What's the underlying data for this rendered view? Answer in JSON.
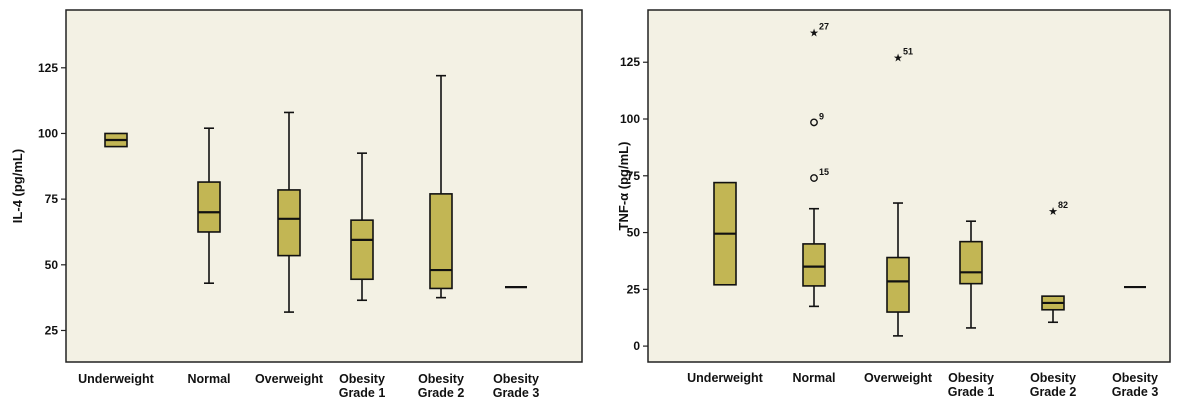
{
  "chart_data": [
    {
      "type": "boxplot",
      "ylabel": "IL-4 (pg/mL)",
      "ylim": [
        13,
        147
      ],
      "yticks": [
        "25",
        "50",
        "75",
        "100",
        "125"
      ],
      "categories": [
        "Underweight",
        "Normal",
        "Overweight",
        "Obesity Grade 1",
        "Obesity Grade 2",
        "Obesity Grade 3"
      ],
      "boxes": [
        {
          "min": 95,
          "q1": 95,
          "median": 97.5,
          "q3": 100,
          "max": 100
        },
        {
          "min": 43,
          "q1": 62.5,
          "median": 70,
          "q3": 81.5,
          "max": 102
        },
        {
          "min": 32,
          "q1": 53.5,
          "median": 67.5,
          "q3": 78.5,
          "max": 108
        },
        {
          "min": 36.5,
          "q1": 44.5,
          "median": 59.5,
          "q3": 67,
          "max": 92.5
        },
        {
          "min": 37.5,
          "q1": 41,
          "median": 48,
          "q3": 77,
          "max": 122
        },
        {
          "min": 41.5,
          "q1": 41.5,
          "median": 41.5,
          "q3": 41.5,
          "max": 41.5
        }
      ],
      "outliers": [],
      "fill_color": "#c2b654"
    },
    {
      "type": "boxplot",
      "ylabel": "TNF-α (pg/mL)",
      "ylim": [
        -7,
        148
      ],
      "yticks": [
        "0",
        "25",
        "50",
        "75",
        "100",
        "125"
      ],
      "categories": [
        "Underweight",
        "Normal",
        "Overweight",
        "Obesity Grade 1",
        "Obesity Grade 2",
        "Obesity Grade 3"
      ],
      "boxes": [
        {
          "min": 27,
          "q1": 27,
          "median": 49.5,
          "q3": 72,
          "max": 72
        },
        {
          "min": 17.5,
          "q1": 26.5,
          "median": 35,
          "q3": 45,
          "max": 60.5
        },
        {
          "min": 4.5,
          "q1": 15,
          "median": 28.5,
          "q3": 39,
          "max": 63
        },
        {
          "min": 8,
          "q1": 27.5,
          "median": 32.5,
          "q3": 46,
          "max": 55
        },
        {
          "min": 10.5,
          "q1": 16,
          "median": 19,
          "q3": 22,
          "max": 22
        },
        {
          "min": 26,
          "q1": 26,
          "median": 26,
          "q3": 26,
          "max": 26
        }
      ],
      "outliers": [
        {
          "category": "Normal",
          "value": 138,
          "symbol": "star",
          "label": "27"
        },
        {
          "category": "Normal",
          "value": 98.5,
          "symbol": "circle",
          "label": "9"
        },
        {
          "category": "Normal",
          "value": 74,
          "symbol": "circle",
          "label": "15"
        },
        {
          "category": "Overweight",
          "value": 127,
          "symbol": "star",
          "label": "51"
        },
        {
          "category": "Obesity Grade 2",
          "value": 59.5,
          "symbol": "star",
          "label": "82"
        }
      ],
      "fill_color": "#c2b654"
    }
  ],
  "colors": {
    "plot_background": "#f3f1e4",
    "box_fill": "#c2b654",
    "frame": "#222222"
  }
}
